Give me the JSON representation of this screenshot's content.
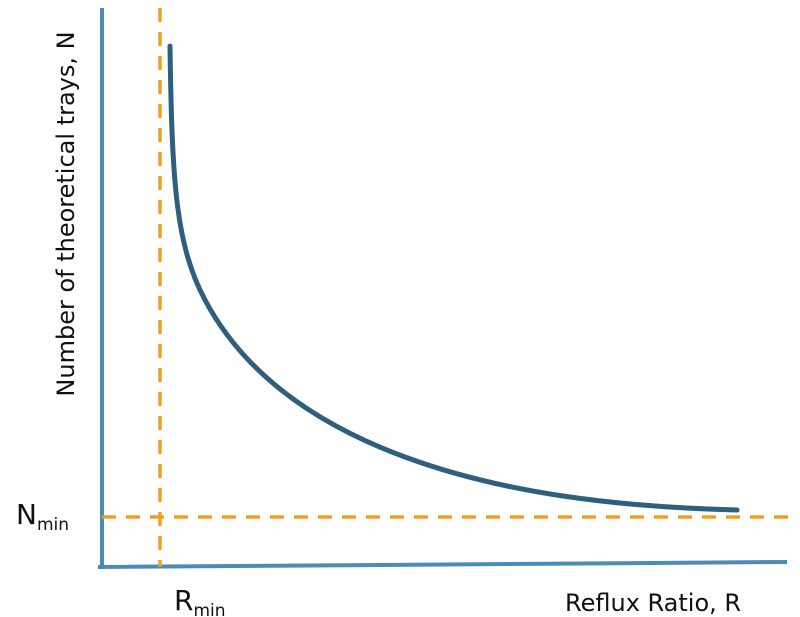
{
  "chart_data": {
    "type": "line",
    "title": "",
    "xlabel": "Reflux Ratio, R",
    "ylabel": "Number of theoretical trays, N",
    "x_marker": {
      "main": "R",
      "sub": "min"
    },
    "y_marker": {
      "main": "N",
      "sub": "min"
    },
    "series": [
      {
        "relationship": "N decreases hyperbolically as R increases, approaching N_min",
        "color": "#2f5f7f"
      }
    ],
    "axis_color": "#4a8bb8",
    "reference_line_color": "#f0a020",
    "grid": false
  }
}
